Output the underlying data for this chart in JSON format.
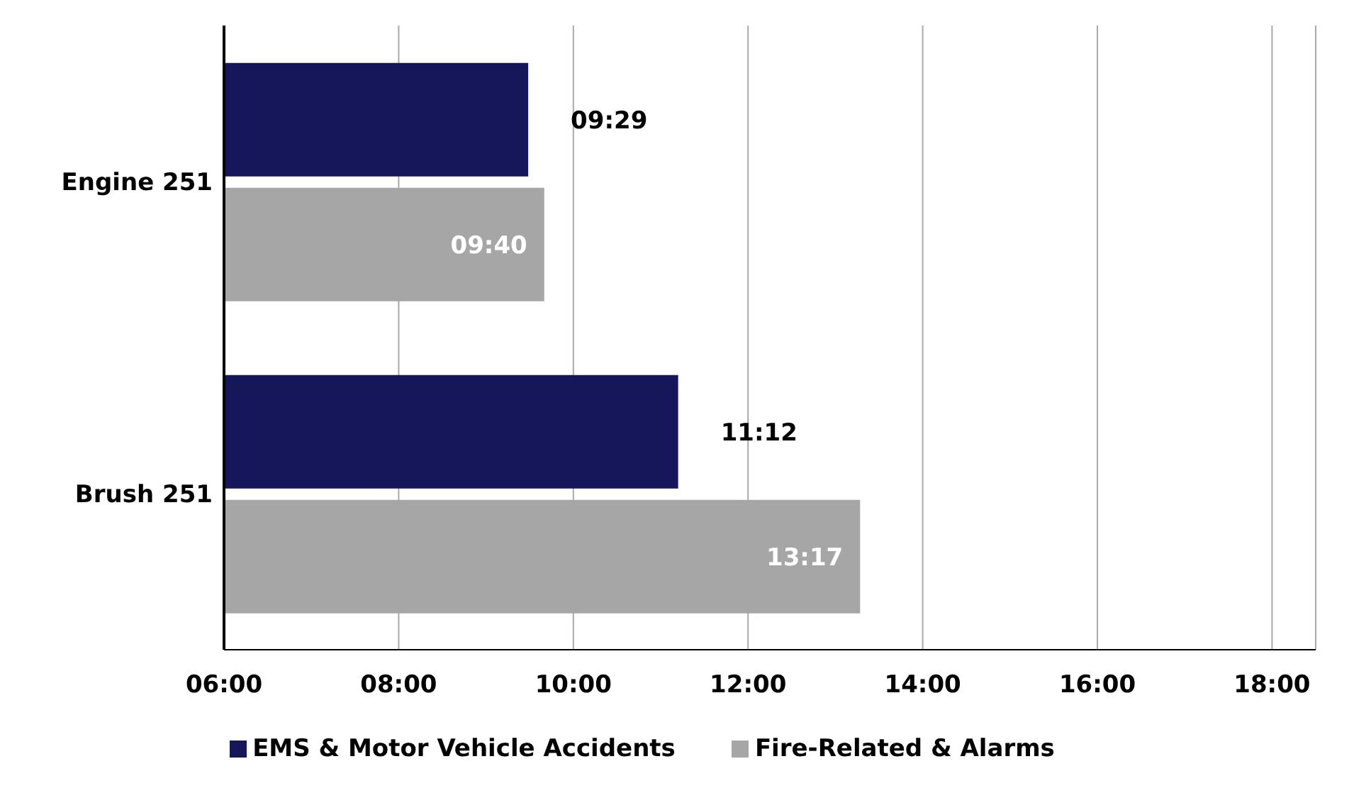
{
  "chart_data": {
    "type": "bar",
    "orientation": "horizontal",
    "categories": [
      "Engine 251",
      "Brush 251"
    ],
    "series": [
      {
        "name": "EMS & Motor Vehicle Accidents",
        "color": "#16165a",
        "values": [
          9.483,
          11.2
        ],
        "value_labels": [
          "09:29",
          "11:12"
        ]
      },
      {
        "name": "Fire-Related & Alarms",
        "color": "#a6a6a6",
        "values": [
          9.667,
          13.283
        ],
        "value_labels": [
          "09:40",
          "13:17"
        ]
      }
    ],
    "xlim": [
      6,
      18.5
    ],
    "xticks": [
      {
        "value": 6,
        "label": "06:00"
      },
      {
        "value": 8,
        "label": "08:00"
      },
      {
        "value": 10,
        "label": "10:00"
      },
      {
        "value": 12,
        "label": "12:00"
      },
      {
        "value": 14,
        "label": "14:00"
      },
      {
        "value": 16,
        "label": "16:00"
      },
      {
        "value": 18,
        "label": "18:00"
      }
    ],
    "grid": "x",
    "legend": "bottom"
  }
}
